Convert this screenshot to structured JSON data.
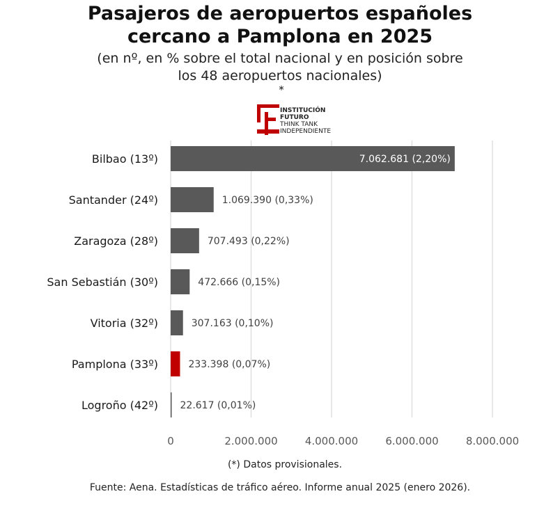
{
  "title_line1": "Pasajeros de aeropuertos españoles",
  "title_line2": "cercano a Pamplona en 2025",
  "subtitle_line1": "(en nº, en % sobre el total nacional y en posición sobre",
  "subtitle_line2": "los 48 aeropuertos nacionales)",
  "star": "*",
  "logo": {
    "line1": "INSTITUCIÓN",
    "line2": "FUTURO",
    "line3": "THINK TANK",
    "line4": "INDEPENDIENTE",
    "color": "#c00000"
  },
  "chart_data": {
    "type": "bar",
    "orientation": "horizontal",
    "categories": [
      "Bilbao (13º)",
      "Santander (24º)",
      "Zaragoza (28º)",
      "San Sebastián (30º)",
      "Vitoria (32º)",
      "Pamplona (33º)",
      "Logroño (42º)"
    ],
    "values": [
      7062681,
      1069390,
      707493,
      472666,
      307163,
      233398,
      22617
    ],
    "value_labels": [
      "7.062.681 (2,20%)",
      "1.069.390 (0,33%)",
      "707.493 (0,22%)",
      "472.666 (0,15%)",
      "307.163 (0,10%)",
      "233.398 (0,07%)",
      "22.617 (0,01%)"
    ],
    "colors": [
      "#595959",
      "#595959",
      "#595959",
      "#595959",
      "#595959",
      "#c00000",
      "#595959"
    ],
    "xlim": [
      0,
      8000000
    ],
    "xticks": [
      0,
      2000000,
      4000000,
      6000000,
      8000000
    ],
    "xtick_labels": [
      "0",
      "2.000.000",
      "4.000.000",
      "6.000.000",
      "8.000.000"
    ],
    "grid": true,
    "legend": "none"
  },
  "note": "(*) Datos provisionales.",
  "source": "Fuente: Aena. Estadísticas de tráfico aéreo. Informe anual 2025 (enero 2026)."
}
